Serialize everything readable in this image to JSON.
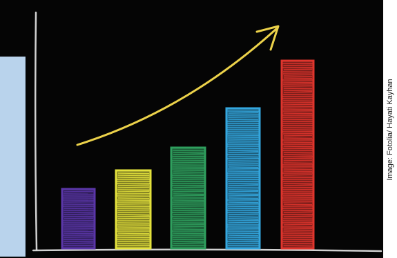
{
  "credit": "Image: Fotolia/ Hayati Kayhan",
  "colors": {
    "chalkboard": "#050505",
    "side_band": "#b9d3ec",
    "axis_chalk": "#e8e8e8",
    "arrow": "#ecd24a",
    "bars": [
      "#5a36a8",
      "#e4e23c",
      "#2fa05e",
      "#34a7df",
      "#e0352d"
    ]
  },
  "icons": [
    "chalk-bar-chart",
    "upward-trend-arrow"
  ]
}
